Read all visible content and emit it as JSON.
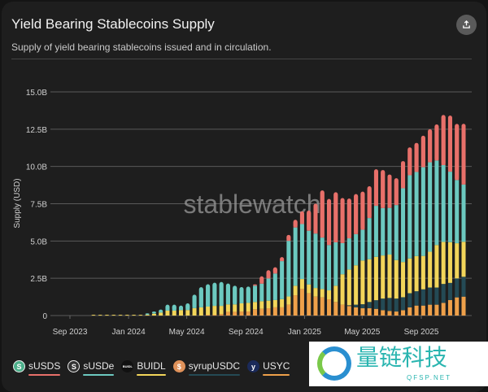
{
  "header": {
    "title": "Yield Bearing Stablecoins Supply",
    "subtitle": "Supply of yield bearing stablecoins issued and in circulation.",
    "share_icon": "share-icon"
  },
  "watermark": {
    "chart": "stablewatch",
    "overlay_text": "量链科技",
    "overlay_sub": "QFSP.NET"
  },
  "colors": {
    "sUSDS": "#e8706a",
    "sUSDe": "#6cc9c0",
    "BUIDL": "#f2d55a",
    "syrupUSDC": "#244a55",
    "USYC": "#eea04a"
  },
  "chart_data": {
    "type": "bar",
    "stacked": true,
    "title": "",
    "ylabel": "Supply (USD)",
    "xlabel": "",
    "ylim": [
      0,
      15000000000
    ],
    "yticks": [
      "0",
      "2.5B",
      "5.0B",
      "7.5B",
      "10.0B",
      "12.5B",
      "15.0B"
    ],
    "xticks": [
      {
        "label": "Sep 2023",
        "date": "2023-09-01"
      },
      {
        "label": "Jan 2024",
        "date": "2024-01-01"
      },
      {
        "label": "May 2024",
        "date": "2024-05-01"
      },
      {
        "label": "Sep 2024",
        "date": "2024-09-01"
      },
      {
        "label": "Jan 2025",
        "date": "2025-01-01"
      },
      {
        "label": "May 2025",
        "date": "2025-05-01"
      },
      {
        "label": "Sep 2025",
        "date": "2025-09-01"
      }
    ],
    "grid": true,
    "legend_position": "bottom",
    "unit": "billion USD",
    "x": [
      "2023-10-20",
      "2023-11-03",
      "2023-11-17",
      "2023-12-01",
      "2023-12-15",
      "2023-12-29",
      "2024-01-12",
      "2024-01-26",
      "2024-02-09",
      "2024-02-23",
      "2024-03-08",
      "2024-03-22",
      "2024-04-05",
      "2024-04-19",
      "2024-05-03",
      "2024-05-17",
      "2024-05-31",
      "2024-06-14",
      "2024-06-28",
      "2024-07-12",
      "2024-07-26",
      "2024-08-09",
      "2024-08-23",
      "2024-09-06",
      "2024-09-20",
      "2024-10-04",
      "2024-10-18",
      "2024-11-01",
      "2024-11-15",
      "2024-11-29",
      "2024-12-13",
      "2024-12-27",
      "2025-01-10",
      "2025-01-24",
      "2025-02-07",
      "2025-02-21",
      "2025-03-07",
      "2025-03-21",
      "2025-04-04",
      "2025-04-18",
      "2025-05-02",
      "2025-05-16",
      "2025-05-30",
      "2025-06-13",
      "2025-06-27",
      "2025-07-11",
      "2025-07-25",
      "2025-08-08",
      "2025-08-22",
      "2025-09-05",
      "2025-09-19",
      "2025-10-03",
      "2025-10-17",
      "2025-10-31",
      "2025-11-14",
      "2025-11-28"
    ],
    "series": [
      {
        "name": "USYC",
        "icon": "y",
        "values": [
          0,
          0,
          0,
          0,
          0,
          0,
          0,
          0,
          0,
          0,
          0,
          0,
          0,
          0,
          0,
          0,
          0,
          0.05,
          0.05,
          0.1,
          0.25,
          0.25,
          0.27,
          0.27,
          0.42,
          0.45,
          0.49,
          0.55,
          0.55,
          0.73,
          1.36,
          1.78,
          1.49,
          1.27,
          1.22,
          1.09,
          0.91,
          0.73,
          0.64,
          0.55,
          0.49,
          0.49,
          0.45,
          0.36,
          0.31,
          0.27,
          0.36,
          0.55,
          0.67,
          0.67,
          0.73,
          0.73,
          0.85,
          1.04,
          1.22,
          1.27
        ]
      },
      {
        "name": "syrupUSDC",
        "icon": "$",
        "values": [
          0,
          0,
          0,
          0,
          0,
          0,
          0,
          0,
          0,
          0,
          0,
          0,
          0,
          0,
          0,
          0,
          0,
          0,
          0,
          0,
          0,
          0,
          0,
          0,
          0,
          0,
          0,
          0,
          0,
          0,
          0,
          0,
          0,
          0,
          0,
          0,
          0,
          0,
          0.05,
          0.18,
          0.27,
          0.42,
          0.58,
          0.78,
          0.87,
          0.87,
          0.87,
          0.95,
          0.96,
          1.09,
          1.15,
          1.15,
          1.27,
          1.15,
          1.27,
          1.33
        ]
      },
      {
        "name": "BUIDL",
        "icon": "BUIDL",
        "values": [
          0.02,
          0.02,
          0.02,
          0.02,
          0.02,
          0.02,
          0.02,
          0.02,
          0.05,
          0.12,
          0.2,
          0.33,
          0.33,
          0.37,
          0.37,
          0.5,
          0.55,
          0.55,
          0.6,
          0.55,
          0.5,
          0.5,
          0.55,
          0.58,
          0.49,
          0.51,
          0.51,
          0.49,
          0.55,
          0.55,
          0.64,
          0.67,
          0.6,
          0.58,
          0.56,
          0.6,
          1.09,
          2.04,
          2.4,
          2.64,
          2.93,
          2.87,
          2.91,
          2.89,
          2.91,
          2.58,
          2.36,
          2.33,
          2.36,
          2.24,
          2.4,
          2.85,
          2.82,
          2.73,
          2.36,
          2.35
        ]
      },
      {
        "name": "sUSDe",
        "icon": "S",
        "values": [
          0,
          0,
          0,
          0,
          0,
          0,
          0,
          0,
          0.1,
          0.15,
          0.2,
          0.4,
          0.4,
          0.3,
          0.45,
          0.9,
          1.35,
          1.5,
          1.55,
          1.6,
          1.4,
          1.25,
          1.09,
          1.09,
          1.09,
          1.18,
          1.49,
          1.78,
          2.55,
          3.73,
          3.91,
          3.69,
          3.6,
          3.65,
          3.45,
          3.04,
          2.91,
          2.09,
          2.09,
          2.09,
          2.07,
          2.76,
          3.42,
          3.18,
          3.13,
          3.69,
          4.95,
          5.58,
          5.64,
          5.95,
          6.0,
          5.67,
          5.15,
          4.73,
          4.24,
          3.84
        ]
      },
      {
        "name": "sUSDS",
        "icon": "S",
        "values": [
          0,
          0,
          0,
          0,
          0,
          0,
          0,
          0,
          0,
          0,
          0,
          0,
          0,
          0,
          0,
          0,
          0,
          0,
          0,
          0,
          0,
          0,
          0,
          0,
          0.09,
          0.49,
          0.55,
          0.42,
          0.27,
          0.4,
          0.51,
          0.85,
          1.35,
          2.0,
          3.16,
          3.09,
          3.36,
          3.02,
          2.67,
          2.69,
          2.55,
          2.13,
          2.45,
          2.55,
          2.24,
          1.8,
          1.82,
          1.87,
          1.95,
          2.11,
          2.22,
          2.42,
          3.36,
          3.76,
          3.76,
          4.07
        ]
      }
    ]
  },
  "legend": [
    {
      "label": "sUSDS",
      "icon": "S",
      "color": "#e8706a",
      "icon_bg": "#4caf8a"
    },
    {
      "label": "sUSDe",
      "icon": "S",
      "color": "#6cc9c0",
      "icon_bg": "#333"
    },
    {
      "label": "BUIDL",
      "icon": "BUIDL",
      "color": "#f2d55a",
      "icon_bg": "#111"
    },
    {
      "label": "syrupUSDC",
      "icon": "$",
      "color": "#244a55",
      "icon_bg": "#e0925a"
    },
    {
      "label": "USYC",
      "icon": "y",
      "color": "#eea04a",
      "icon_bg": "#1b2a5a"
    }
  ]
}
